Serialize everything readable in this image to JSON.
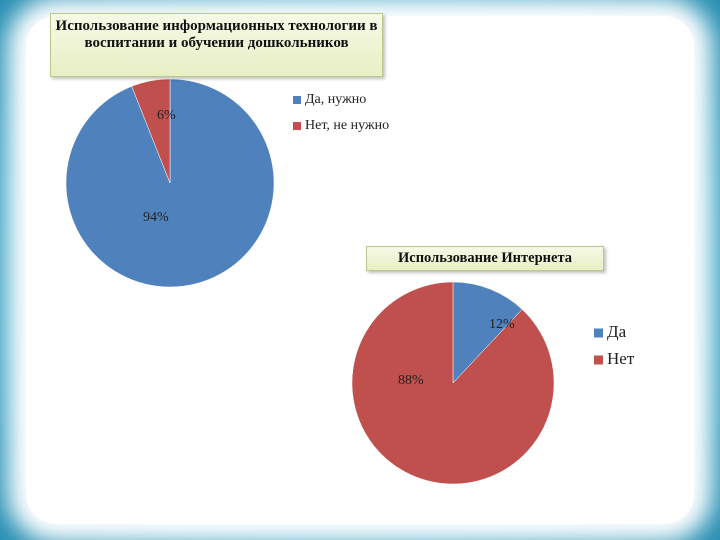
{
  "chart_data": [
    {
      "type": "pie",
      "title": "Использование информационных технологии в воспитании и обучении дошкольников",
      "categories": [
        "Да, нужно",
        "Нет, не нужно"
      ],
      "values": [
        94,
        6
      ],
      "value_labels": [
        "94%",
        "6%"
      ],
      "colors": [
        "#4f81bd",
        "#c0504d"
      ],
      "legend": "right"
    },
    {
      "type": "pie",
      "title": "Использование Интернета",
      "categories": [
        "Да",
        "Нет"
      ],
      "values": [
        12,
        88
      ],
      "value_labels": [
        "12%",
        "88%"
      ],
      "colors": [
        "#4f81bd",
        "#c0504d"
      ],
      "legend": "right"
    }
  ]
}
